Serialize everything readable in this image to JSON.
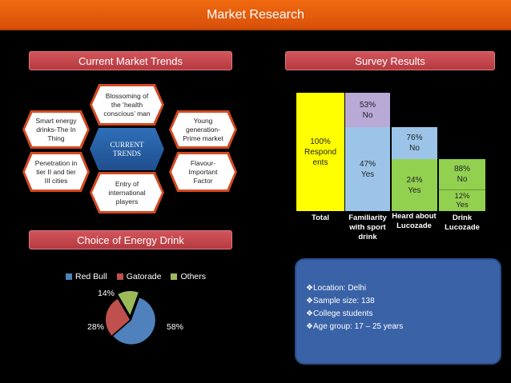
{
  "title": "Market Research",
  "sections": {
    "trends": "Current Market Trends",
    "survey": "Survey Results",
    "energy": "Choice of Energy Drink"
  },
  "trends": {
    "center": "CURRENT TRENDS",
    "blossoming": "Blossoming of the ‘health conscious’ man",
    "smart": "Smart energy drinks-The In Thing",
    "young": "Young generation- Prime market",
    "penetration": "Penetration in tier II and tier III cities",
    "entry": "Entry of international players",
    "flavour": "Flavour- Important Factor"
  },
  "chart_data": {
    "survey": {
      "type": "bar",
      "categories": [
        "Total",
        "Familiarity with sport drink",
        "Heard about Lucozade",
        "Drink Lucozade"
      ],
      "bars": [
        {
          "category": "Total",
          "segments": [
            {
              "label": "100% Respondents",
              "value": 100
            }
          ]
        },
        {
          "category": "Familiarity with sport drink",
          "segments": [
            {
              "label": "53% No",
              "value": 53
            },
            {
              "label": "47% Yes",
              "value": 47
            }
          ]
        },
        {
          "category": "Heard about Lucozade",
          "segments": [
            {
              "label": "76% No",
              "value": 76
            },
            {
              "label": "24% Yes",
              "value": 24
            }
          ]
        },
        {
          "category": "Drink Lucozade",
          "segments": [
            {
              "label": "88% No",
              "value": 88
            },
            {
              "label": "12% Yes",
              "value": 12
            }
          ]
        }
      ],
      "texts": {
        "total": "100% Respond ents",
        "fam_no_pct": "53%",
        "fam_no": "No",
        "fam_yes_pct": "47%",
        "fam_yes": "Yes",
        "heard_no_pct": "76%",
        "heard_no": "No",
        "heard_yes_pct": "24%",
        "heard_yes": "Yes",
        "drink_no_pct": "88%",
        "drink_no": "No",
        "drink_yes_pct": "12%",
        "drink_yes": "Yes"
      },
      "category_labels": {
        "total": "Total",
        "familiarity": "Familiarity with sport drink",
        "heard": "Heard about Lucozade",
        "drink": "Drink Lucozade"
      }
    },
    "energy": {
      "type": "pie",
      "slices": [
        {
          "name": "Red Bull",
          "value": 58,
          "label": "58%",
          "color": "#4f81bd"
        },
        {
          "name": "Gatorade",
          "value": 28,
          "label": "28%",
          "color": "#c0504d"
        },
        {
          "name": "Others",
          "value": 14,
          "label": "14%",
          "color": "#9bbb59"
        }
      ]
    }
  },
  "info": [
    "❖Location: Delhi",
    "❖Sample size: 138",
    "❖College students",
    "❖Age group: 17 – 25 years"
  ]
}
